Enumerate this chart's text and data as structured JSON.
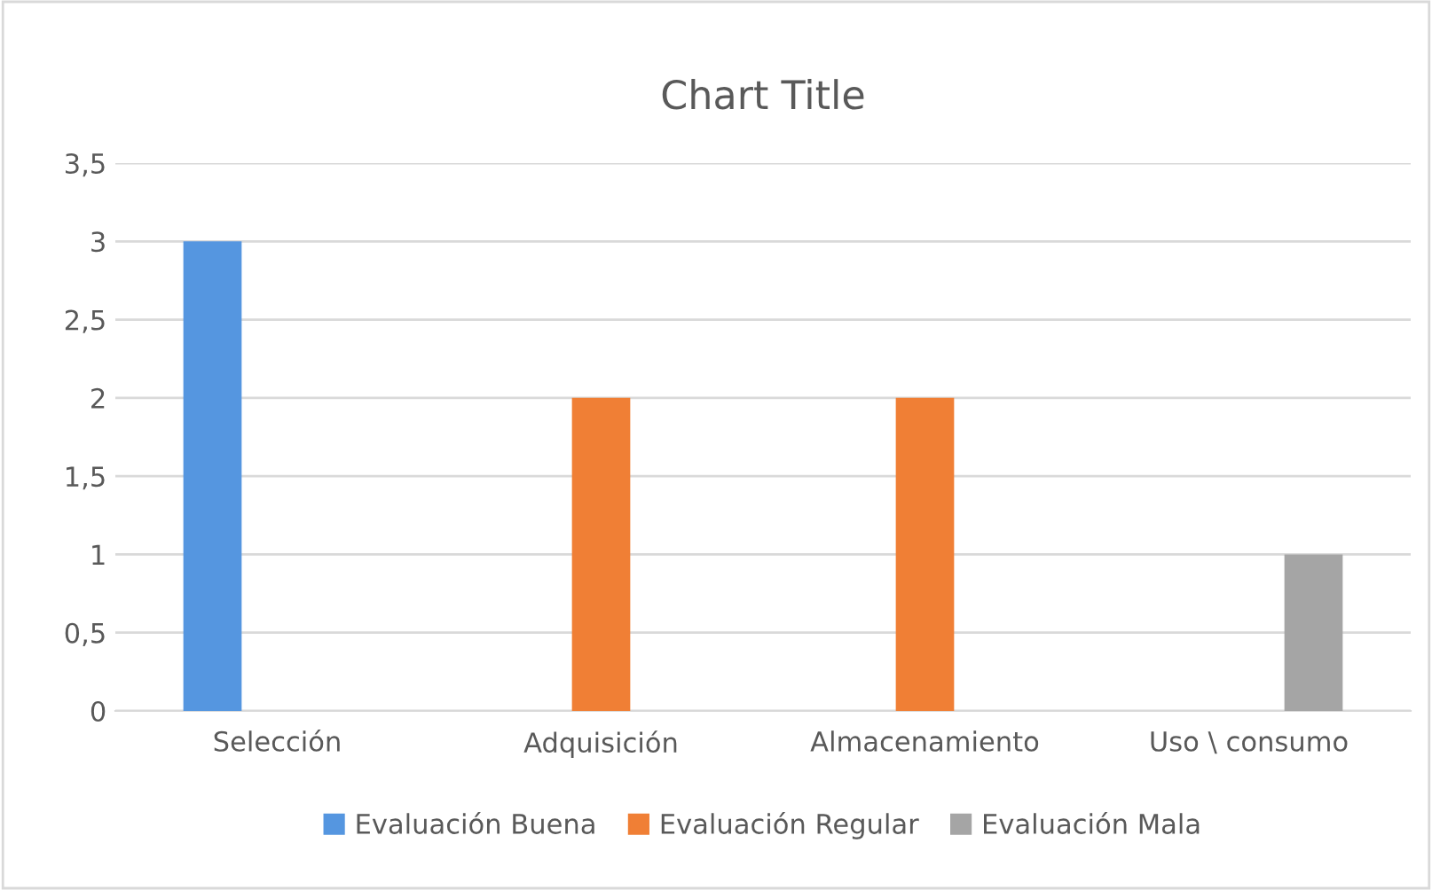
{
  "chart_data": {
    "type": "bar",
    "title": "Chart Title",
    "categories": [
      "Selección",
      "Adquisición",
      "Almacenamiento",
      "Uso \\ consumo"
    ],
    "series": [
      {
        "name": "Evaluación Buena",
        "color": "#5596e0",
        "values": [
          3,
          null,
          null,
          null
        ]
      },
      {
        "name": "Evaluación Regular",
        "color": "#f07f35",
        "values": [
          null,
          2,
          2,
          null
        ]
      },
      {
        "name": "Evaluación Mala",
        "color": "#a5a5a5",
        "values": [
          null,
          null,
          null,
          1
        ]
      }
    ],
    "ylim": [
      0,
      3.5
    ],
    "yticks": [
      0,
      {
        "value": 0.5,
        "label": "0,5"
      },
      1,
      {
        "value": 1.5,
        "label": "1,5"
      },
      2,
      {
        "value": 2.5,
        "label": "2,5"
      },
      3,
      {
        "value": 3.5,
        "label": "3,5"
      }
    ],
    "grid": "y",
    "legend": "bottom"
  }
}
